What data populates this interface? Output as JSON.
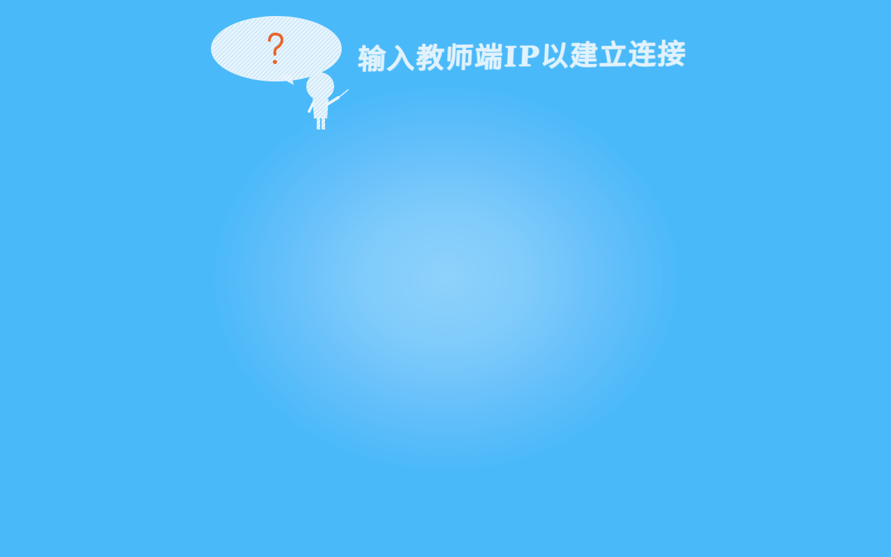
{
  "screen": {
    "title": "输入教师端IP以建立连接"
  },
  "icons": {
    "bubble": "speech-bubble-icon",
    "question": "question-mark-icon",
    "teacher": "chalk-teacher-figure-icon"
  },
  "colors": {
    "background": "#4ab9f9",
    "background_center": "#8dd2fb",
    "chalk": "#eef7fd",
    "question_mark": "#e8642a"
  }
}
